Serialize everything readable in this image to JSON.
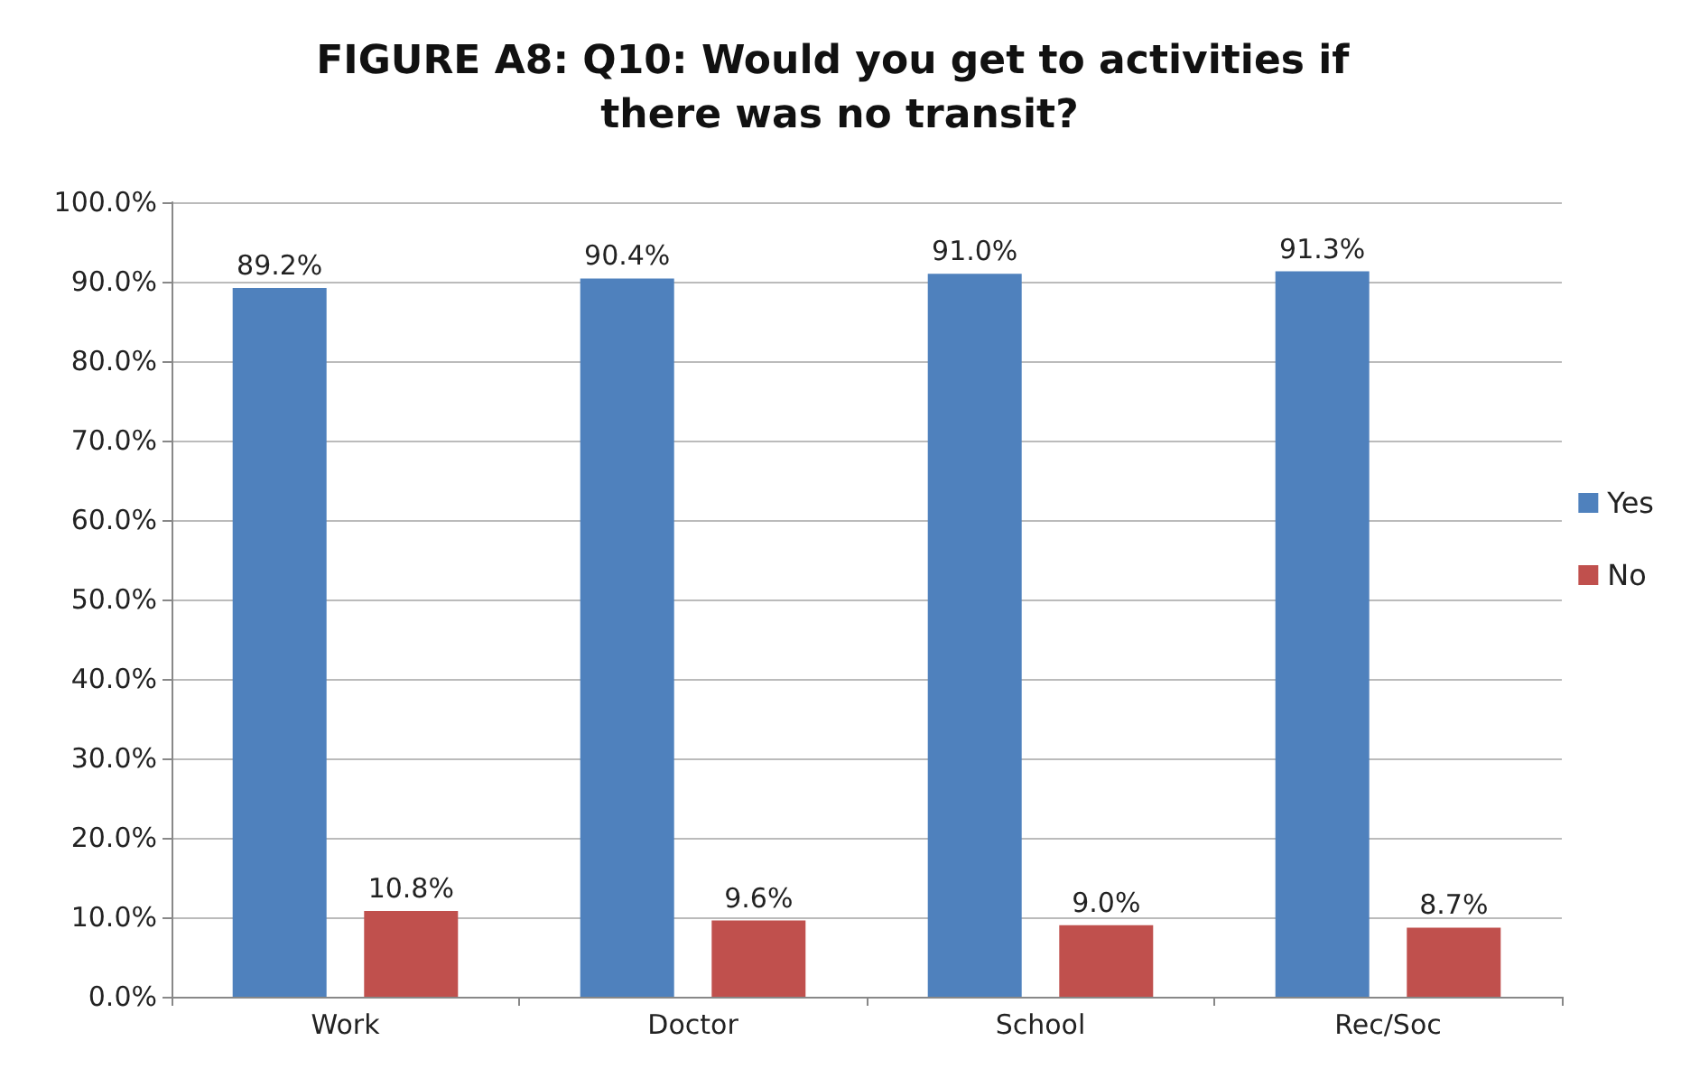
{
  "chart_data": {
    "type": "bar",
    "title": "FIGURE A8: Q10: Would you get to activities if there was no transit?",
    "categories": [
      "Work",
      "Doctor",
      "School",
      "Rec/Soc"
    ],
    "series": [
      {
        "name": "Yes",
        "color": "#4f81bd",
        "values": [
          89.2,
          90.4,
          91.0,
          91.3
        ],
        "value_labels": [
          "89.2%",
          "90.4%",
          "91.0%",
          "91.3%"
        ]
      },
      {
        "name": "No",
        "color": "#c0504d",
        "values": [
          10.8,
          9.6,
          9.0,
          8.7
        ],
        "value_labels": [
          "10.8%",
          "9.6%",
          "9.0%",
          "8.7%"
        ]
      }
    ],
    "ylim": [
      0,
      100
    ],
    "yticks": [
      {
        "value": 0,
        "label": "0.0%"
      },
      {
        "value": 10,
        "label": "10.0%"
      },
      {
        "value": 20,
        "label": "20.0%"
      },
      {
        "value": 30,
        "label": "30.0%"
      },
      {
        "value": 40,
        "label": "40.0%"
      },
      {
        "value": 50,
        "label": "50.0%"
      },
      {
        "value": 60,
        "label": "60.0%"
      },
      {
        "value": 70,
        "label": "70.0%"
      },
      {
        "value": 80,
        "label": "80.0%"
      },
      {
        "value": 90,
        "label": "90.0%"
      },
      {
        "value": 100,
        "label": "100.0%"
      }
    ],
    "grid": "y",
    "legend": "right"
  }
}
